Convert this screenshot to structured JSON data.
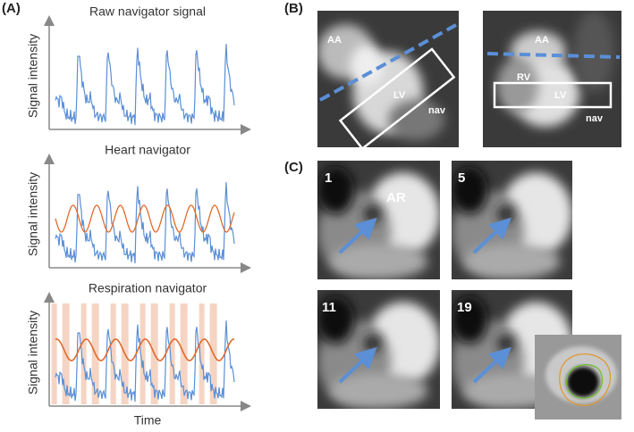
{
  "panel_a": {
    "label": "(A)",
    "plots": [
      {
        "title": "Raw navigator signal",
        "y_label": "Signal intensity"
      },
      {
        "title": "Heart navigator",
        "y_label": "Signal intensity"
      },
      {
        "title": "Respiration navigator",
        "y_label": "Signal intensity"
      }
    ],
    "x_label": "Time"
  },
  "panel_b": {
    "label": "(B)",
    "images": [
      {
        "labels": [
          "AA",
          "LV",
          "nav"
        ]
      },
      {
        "labels": [
          "AA",
          "RV",
          "LV",
          "nav"
        ]
      }
    ]
  },
  "panel_c": {
    "label": "(C)",
    "images": [
      {
        "labels": [
          "1",
          "AR"
        ]
      },
      {
        "labels": [
          "5"
        ]
      },
      {
        "labels": [
          "11"
        ]
      },
      {
        "labels": [
          "19"
        ]
      }
    ]
  }
}
